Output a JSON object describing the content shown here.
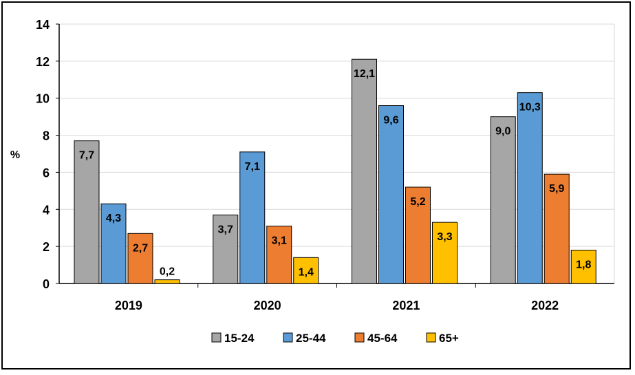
{
  "chart_data": {
    "type": "bar",
    "title": "",
    "xlabel": "",
    "ylabel": "%",
    "ylim": [
      0,
      14
    ],
    "yticks": [
      0,
      2,
      4,
      6,
      8,
      10,
      12,
      14
    ],
    "grid": true,
    "legend_position": "bottom",
    "categories": [
      "2019",
      "2020",
      "2021",
      "2022"
    ],
    "series": [
      {
        "name": "15-24",
        "color": "#a6a6a6",
        "values": [
          7.7,
          3.7,
          12.1,
          9.0
        ],
        "labels": [
          "7,7",
          "3,7",
          "12,1",
          "9,0"
        ]
      },
      {
        "name": "25-44",
        "color": "#5b9bd5",
        "values": [
          4.3,
          7.1,
          9.6,
          10.3
        ],
        "labels": [
          "4,3",
          "7,1",
          "9,6",
          "10,3"
        ]
      },
      {
        "name": "45-64",
        "color": "#ed7d31",
        "values": [
          2.7,
          3.1,
          5.2,
          5.9
        ],
        "labels": [
          "2,7",
          "3,1",
          "5,2",
          "5,9"
        ]
      },
      {
        "name": "65+",
        "color": "#ffc000",
        "values": [
          0.2,
          1.4,
          3.3,
          1.8
        ],
        "labels": [
          "0,2",
          "1,4",
          "3,3",
          "1,8"
        ]
      }
    ]
  }
}
